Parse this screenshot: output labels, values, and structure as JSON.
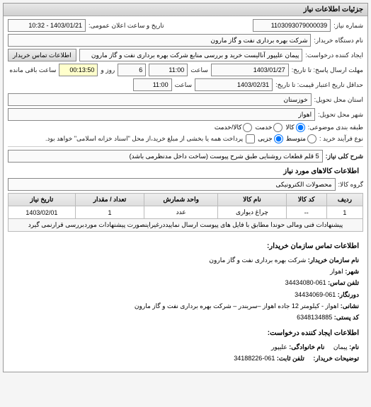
{
  "header": {
    "title": "جزئیات اطلاعات نیاز"
  },
  "form": {
    "request_no_label": "شماره نیاز:",
    "request_no": "1103093079000039",
    "announce_label": "تاریخ و ساعت اعلان عمومی:",
    "announce_value": "1403/01/21 - 10:32",
    "buyer_org_label": "نام دستگاه خریدار:",
    "buyer_org": "شرکت بهره برداری نفت و گاز مارون",
    "requester_label": "ایجاد کننده درخواست:",
    "requester": "پیمان علیپور آنالیست خرید و بررسی منابع شرکت بهره برداری نفت و گاز مارون",
    "contact_btn": "اطلاعات تماس خریدار",
    "deadline_from_label": "مهلت ارسال پاسخ: تا تاریخ:",
    "deadline_date": "1403/01/27",
    "deadline_time_label": "ساعت",
    "deadline_time": "11:00",
    "days_label": "روز و",
    "days_value": "6",
    "remaining_time": "00:13:50",
    "remaining_label": "ساعت باقی مانده",
    "validity_label": "حداقل تاریخ اعتبار قیمت: تا تاریخ:",
    "validity_date": "1403/02/31",
    "validity_time_label": "ساعت",
    "validity_time": "11:00",
    "province_label": "استان محل تحویل:",
    "province": "خوزستان",
    "city_label": "شهر محل تحویل:",
    "city": "اهواز",
    "category_label": "طبقه بندی موضوعی:",
    "cat_opts": {
      "goods": "کالا",
      "service": "خدمت",
      "both": "کالا/خدمت"
    },
    "process_label": "نوع فرآیند خرید :",
    "proc_opts": {
      "negotiation": "متوسط",
      "partial": "جزیی"
    },
    "process_note": "پرداخت همه یا بخشی از مبلغ خرید،از محل \"اسناد خزانه اسلامی\" خواهد بود.",
    "need_title_label": "شرح کلی نیاز:",
    "need_title": "5 قلم قطعات روشنایی طبق شرح پیوست (ساخت داخل مدنظرمی باشد)"
  },
  "goods": {
    "section_title": "اطلاعات کالاهای مورد نیاز",
    "group_label": "گروه کالا:",
    "group_value": "محصولات الکترونیکی",
    "columns": {
      "idx": "ردیف",
      "code": "کد کالا",
      "name": "نام کالا",
      "unit": "واحد شمارش",
      "qty": "تعداد / مقدار",
      "need_date": "تاریخ نیاز"
    },
    "rows": [
      {
        "idx": "1",
        "code": "--",
        "name": "چراغ دیواری",
        "unit": "عدد",
        "qty": "1",
        "need_date": "1403/02/01"
      }
    ],
    "note": "پیشنهادات فنی ومالی حوندا مطابق با فایل های پیوست ارسال نماییددرغیراینصورت پیشنهادات موردبررسی قرارنمی گیرد"
  },
  "contact": {
    "section1_title": "اطلاعات تماس سازمان خریدار:",
    "org_label": "نام سازمان خریدار:",
    "org_value": "شرکت بهره برداری نفت و گاز مارون",
    "city_label": "شهر:",
    "city_value": "اهواز",
    "phone_label": "تلفن تماس:",
    "phone_value": "061-34434080",
    "fax_label": "دورنگار:",
    "fax_value": "061-34434069",
    "address_label": "نشانی:",
    "address_value": "اهواز - کیلومتر 12 جاده اهواز –سربندر – شرکت بهره برداری نفت و گاز مارون",
    "postal_label": "کد پستی:",
    "postal_value": "6348134885",
    "section2_title": "اطلاعات ایجاد کننده درخواست:",
    "name_label": "نام:",
    "name_value": "پیمان",
    "lname_label": "نام خانوادگی:",
    "lname_value": "علیپور",
    "buyer_notes_label": "توضیحات خریدار:",
    "creator_phone_label": "تلفن ثابت:",
    "creator_phone_value": "061-34188226"
  }
}
